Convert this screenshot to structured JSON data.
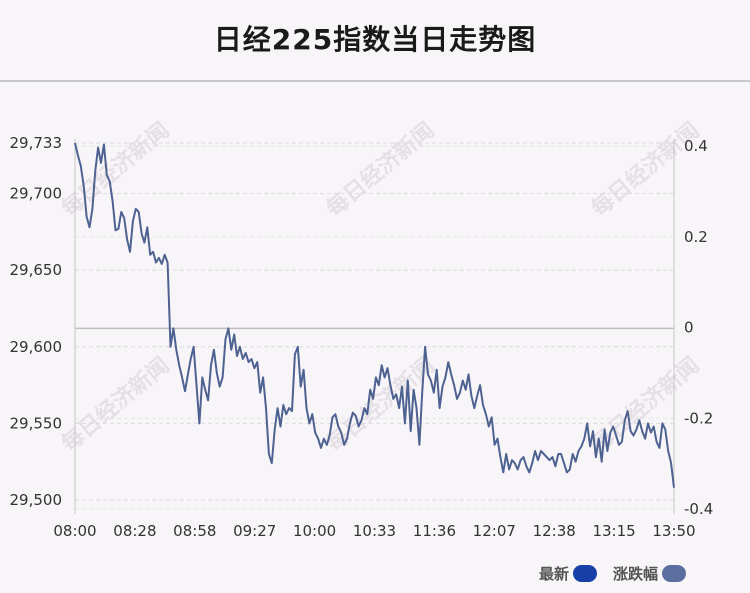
{
  "title": "日经225指数当日走势图",
  "watermark": "每日经济新闻",
  "legend": [
    {
      "label": "最新",
      "color": "#1640a8"
    },
    {
      "label": "涨跌幅",
      "color": "#5a6fa0"
    }
  ],
  "chart_data": {
    "type": "line",
    "title": "日经225指数当日走势图",
    "x_ticks": [
      "08:00",
      "08:28",
      "08:58",
      "09:27",
      "10:00",
      "10:33",
      "11:36",
      "12:07",
      "12:38",
      "13:15",
      "13:50"
    ],
    "y_left_ticks": [
      "29,733",
      "29,700",
      "29,650",
      "29,600",
      "29,550",
      "29,500"
    ],
    "y_right_ticks": [
      "0.4",
      "0.2",
      "0",
      "-0.2",
      "-0.4"
    ],
    "y_left_range": [
      29500,
      29733
    ],
    "y_right_range": [
      -0.4,
      0.4
    ],
    "baseline_value": 29612,
    "grid": true,
    "legend_position": "bottom-right",
    "series": [
      {
        "name": "最新",
        "color": "#4e6291",
        "values": [
          29733,
          29725,
          29718,
          29705,
          29685,
          29678,
          29690,
          29715,
          29730,
          29720,
          29732,
          29712,
          29708,
          29695,
          29676,
          29677,
          29688,
          29684,
          29670,
          29662,
          29682,
          29690,
          29688,
          29674,
          29668,
          29678,
          29660,
          29662,
          29655,
          29658,
          29654,
          29660,
          29655,
          29600,
          29612,
          29598,
          29588,
          29580,
          29571,
          29582,
          29592,
          29600,
          29575,
          29550,
          29580,
          29572,
          29565,
          29588,
          29598,
          29583,
          29574,
          29580,
          29605,
          29612,
          29598,
          29608,
          29594,
          29600,
          29592,
          29596,
          29590,
          29592,
          29586,
          29590,
          29570,
          29580,
          29560,
          29530,
          29524,
          29546,
          29560,
          29548,
          29562,
          29556,
          29560,
          29558,
          29595,
          29600,
          29574,
          29585,
          29560,
          29550,
          29556,
          29544,
          29540,
          29534,
          29540,
          29536,
          29542,
          29554,
          29556,
          29548,
          29544,
          29536,
          29540,
          29550,
          29557,
          29555,
          29548,
          29552,
          29560,
          29556,
          29572,
          29566,
          29580,
          29575,
          29588,
          29580,
          29586,
          29575,
          29566,
          29569,
          29560,
          29574,
          29550,
          29578,
          29545,
          29572,
          29560,
          29536,
          29570,
          29600,
          29582,
          29578,
          29570,
          29585,
          29560,
          29574,
          29580,
          29590,
          29582,
          29575,
          29566,
          29570,
          29578,
          29572,
          29582,
          29568,
          29560,
          29568,
          29575,
          29562,
          29556,
          29548,
          29554,
          29536,
          29540,
          29528,
          29518,
          29530,
          29520,
          29526,
          29524,
          29520,
          29526,
          29528,
          29522,
          29518,
          29524,
          29532,
          29526,
          29532,
          29530,
          29528,
          29526,
          29528,
          29522,
          29530,
          29530,
          29524,
          29518,
          29520,
          29530,
          29525,
          29532,
          29535,
          29540,
          29550,
          29535,
          29545,
          29528,
          29540,
          29525,
          29546,
          29532,
          29544,
          29548,
          29542,
          29536,
          29538,
          29552,
          29558,
          29545,
          29542,
          29546,
          29552,
          29545,
          29540,
          29550,
          29544,
          29548,
          29538,
          29534,
          29550,
          29546,
          29532,
          29524,
          29508
        ]
      }
    ]
  }
}
